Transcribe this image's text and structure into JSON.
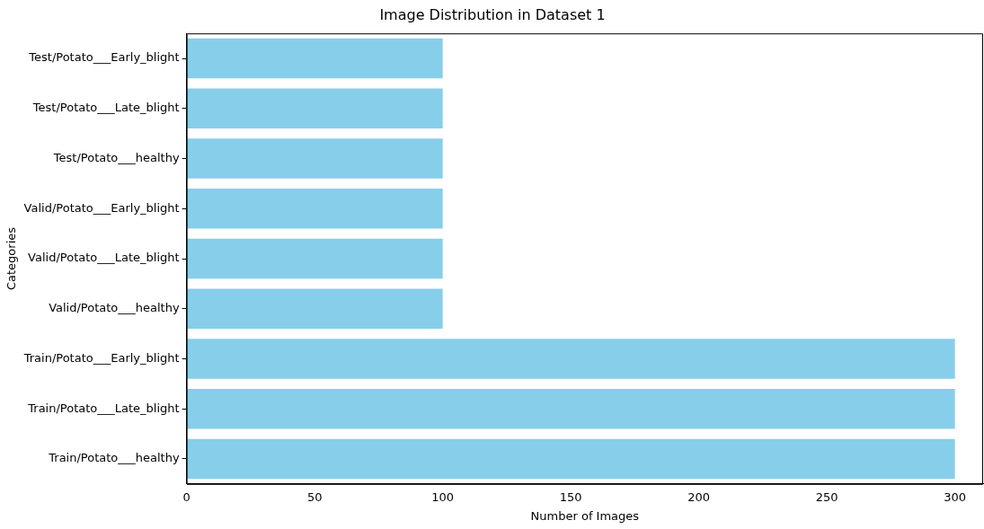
{
  "chart_data": {
    "type": "bar",
    "orientation": "horizontal",
    "title": "Image Distribution in Dataset 1",
    "xlabel": "Number of Images",
    "ylabel": "Categories",
    "categories": [
      "Test/Potato___Early_blight",
      "Test/Potato___Late_blight",
      "Test/Potato___healthy",
      "Valid/Potato___Early_blight",
      "Valid/Potato___Late_blight",
      "Valid/Potato___healthy",
      "Train/Potato___Early_blight",
      "Train/Potato___Late_blight",
      "Train/Potato___healthy"
    ],
    "values": [
      100,
      100,
      100,
      100,
      100,
      100,
      300,
      300,
      300
    ],
    "color": "#87ceeb",
    "xlim": [
      0,
      311
    ],
    "xticks": [
      0,
      50,
      100,
      150,
      200,
      250,
      300
    ],
    "grid": false,
    "legend": false
  }
}
